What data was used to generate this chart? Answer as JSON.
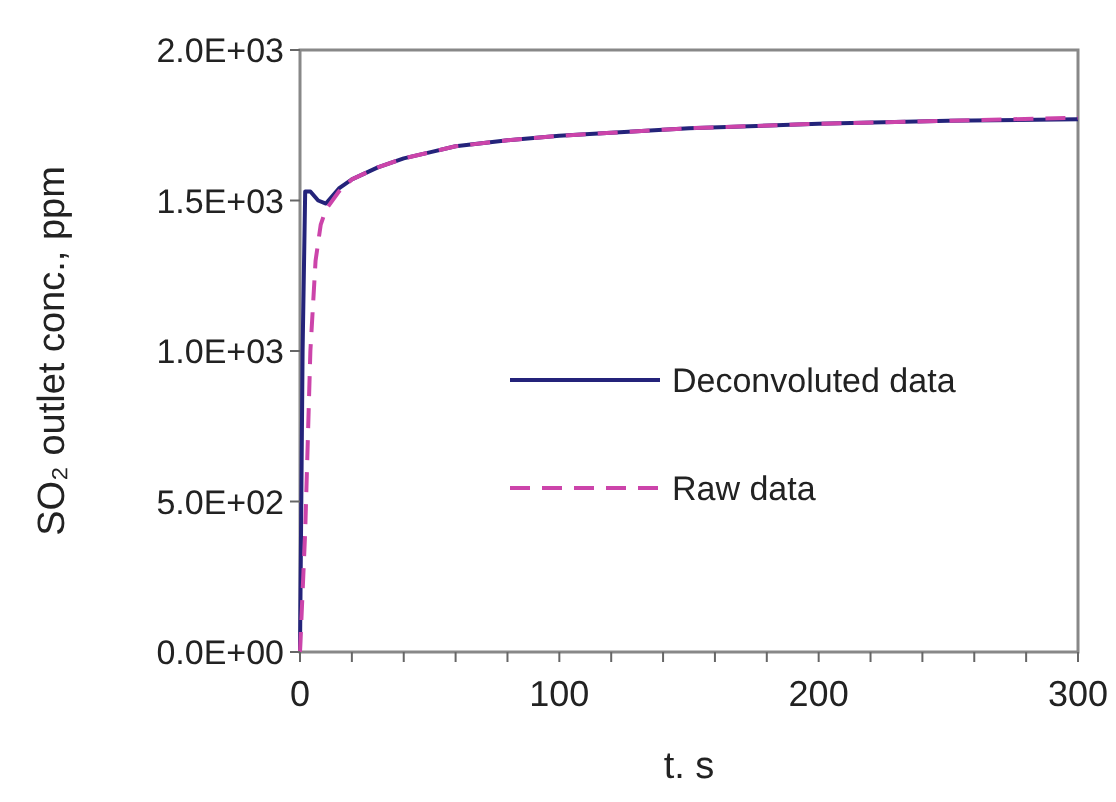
{
  "chart_data": {
    "type": "line",
    "xlabel": "t. s",
    "ylabel": "SO₂ outlet conc., ppm",
    "xlim": [
      0,
      300
    ],
    "ylim": [
      0,
      2000
    ],
    "xticks": [
      0,
      {
        "value": 20,
        "label": null
      },
      {
        "value": 40,
        "label": null
      },
      {
        "value": 60,
        "label": null
      },
      {
        "value": 80,
        "label": null
      },
      100,
      {
        "value": 120,
        "label": null
      },
      {
        "value": 140,
        "label": null
      },
      {
        "value": 160,
        "label": null
      },
      {
        "value": 180,
        "label": null
      },
      200,
      {
        "value": 220,
        "label": null
      },
      {
        "value": 240,
        "label": null
      },
      {
        "value": 260,
        "label": null
      },
      {
        "value": 280,
        "label": null
      },
      300
    ],
    "yticks": [
      {
        "value": 0,
        "label": "0.0E+00"
      },
      {
        "value": 500,
        "label": "5.0E+02"
      },
      {
        "value": 1000,
        "label": "1.0E+03"
      },
      {
        "value": 1500,
        "label": "1.5E+03"
      },
      {
        "value": 2000,
        "label": "2.0E+03"
      }
    ],
    "grid": false,
    "legend": "right",
    "marker": "none",
    "series": [
      {
        "name": "Deconvoluted data",
        "color": "#24237a",
        "line_style": "solid",
        "x": [
          0,
          1,
          2,
          4,
          7,
          10,
          15,
          20,
          30,
          40,
          50,
          60,
          80,
          100,
          120,
          150,
          200,
          250,
          300
        ],
        "values": [
          0,
          1000,
          1530,
          1530,
          1500,
          1490,
          1540,
          1570,
          1610,
          1640,
          1660,
          1680,
          1700,
          1715,
          1725,
          1740,
          1755,
          1765,
          1770
        ]
      },
      {
        "name": "Raw data",
        "color": "#cc44aa",
        "line_style": "dashed",
        "x": [
          0,
          2,
          4,
          6,
          8,
          10,
          15,
          20,
          30,
          40,
          50,
          60,
          80,
          100,
          120,
          150,
          200,
          250,
          300
        ],
        "values": [
          0,
          400,
          1000,
          1300,
          1420,
          1470,
          1530,
          1570,
          1610,
          1640,
          1660,
          1680,
          1700,
          1715,
          1725,
          1740,
          1755,
          1765,
          1775
        ]
      }
    ]
  }
}
